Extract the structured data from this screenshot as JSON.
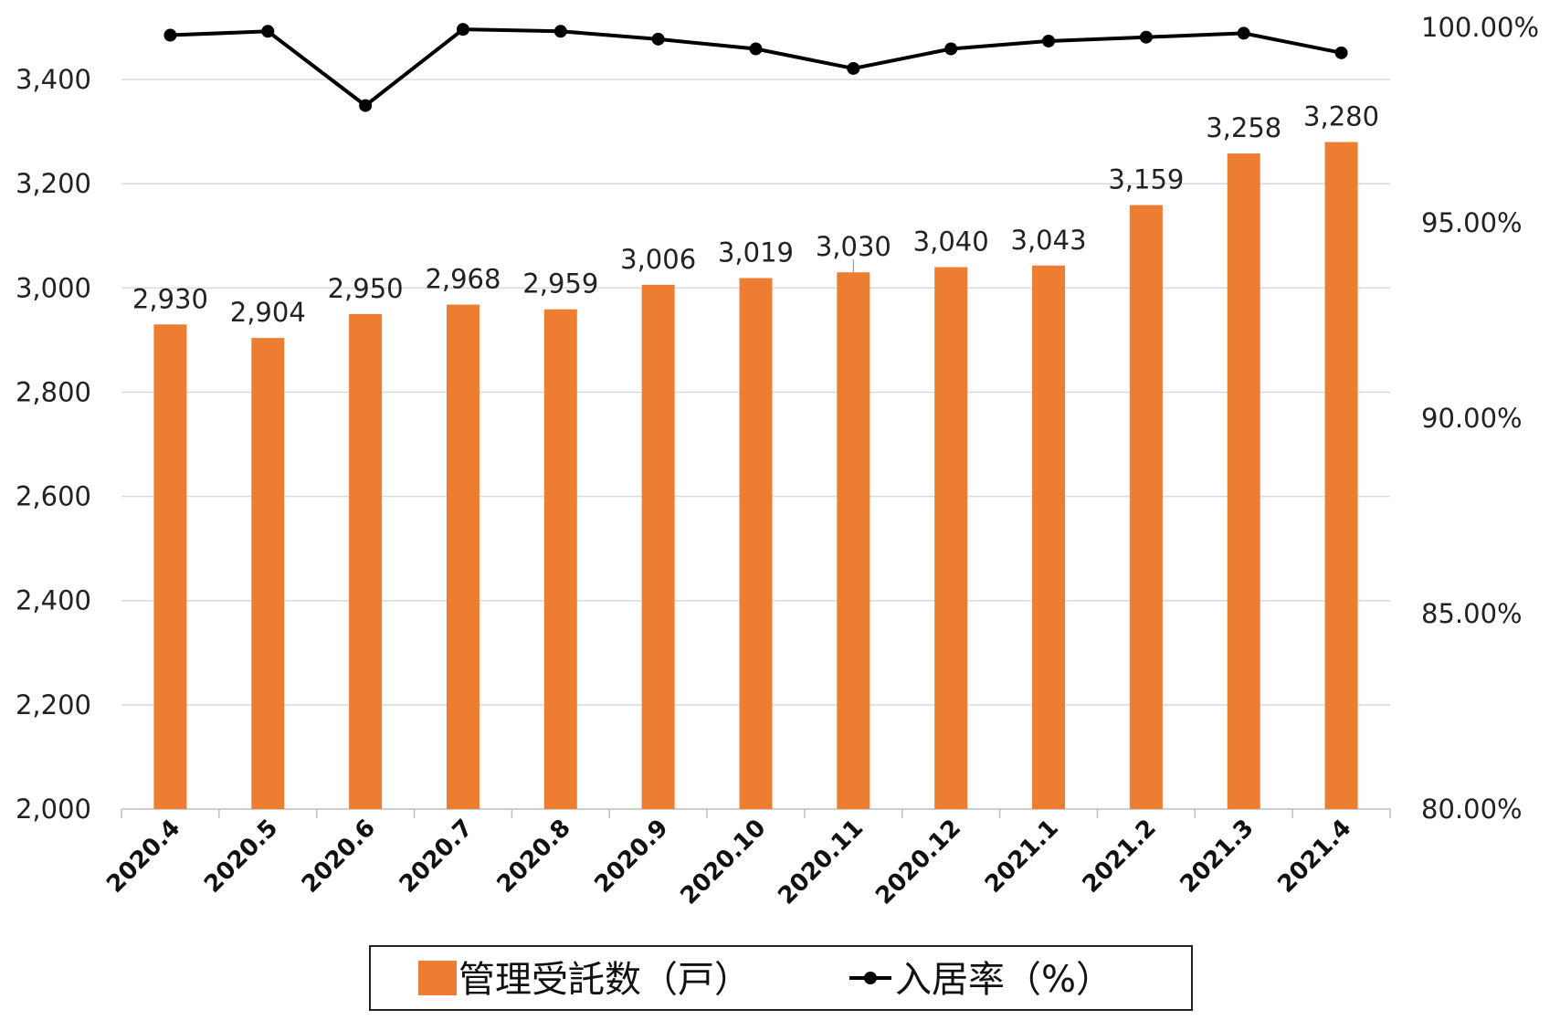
{
  "chart_data": {
    "type": "bar+line",
    "categories": [
      "2020.4",
      "2020.5",
      "2020.6",
      "2020.7",
      "2020.8",
      "2020.9",
      "2020.10",
      "2020.11",
      "2020.12",
      "2021.1",
      "2021.2",
      "2021.3",
      "2021.4"
    ],
    "series": [
      {
        "name": "管理受託数（戸）",
        "type": "bar",
        "axis": "left",
        "color": "#ED7D31",
        "values": [
          2930,
          2904,
          2950,
          2968,
          2959,
          3006,
          3019,
          3030,
          3040,
          3043,
          3159,
          3258,
          3280
        ],
        "labels": [
          "2,930",
          "2,904",
          "2,950",
          "2,968",
          "2,959",
          "3,006",
          "3,019",
          "3,030",
          "3,040",
          "3,043",
          "3,159",
          "3,258",
          "3,280"
        ]
      },
      {
        "name": "入居率（%）",
        "type": "line",
        "axis": "right",
        "color": "#000000",
        "values": [
          99.8,
          99.9,
          98.0,
          99.95,
          99.9,
          99.7,
          99.45,
          98.95,
          99.45,
          99.65,
          99.75,
          99.85,
          99.35
        ]
      }
    ],
    "y_left": {
      "lim": [
        2000,
        3500
      ],
      "ticks": [
        2000,
        2200,
        2400,
        2600,
        2800,
        3000,
        3200,
        3400
      ],
      "tick_labels": [
        "2,000",
        "2,200",
        "2,400",
        "2,600",
        "2,800",
        "3,000",
        "3,200",
        "3,400"
      ]
    },
    "y_right": {
      "lim": [
        80,
        100
      ],
      "ticks": [
        80,
        85,
        90,
        95,
        100
      ],
      "tick_labels": [
        "80.00%",
        "85.00%",
        "90.00%",
        "95.00%",
        "100.00%"
      ]
    },
    "grid": true,
    "legend_position": "bottom"
  }
}
